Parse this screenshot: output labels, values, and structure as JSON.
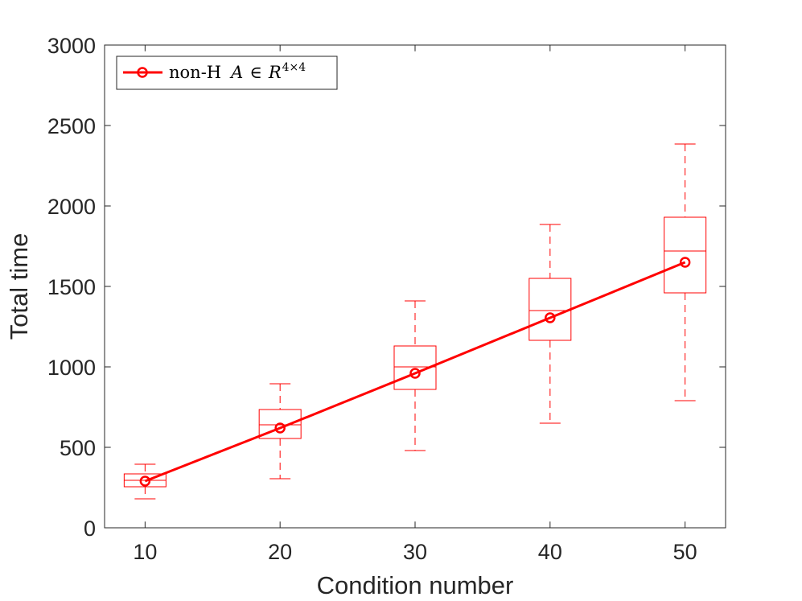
{
  "chart_data": {
    "type": "line",
    "xlabel": "Condition number",
    "ylabel": "Total time",
    "xlim": [
      7,
      53
    ],
    "ylim": [
      0,
      3000
    ],
    "xticks": [
      "10",
      "20",
      "30",
      "40",
      "50"
    ],
    "yticks": [
      "0",
      "500",
      "1000",
      "1500",
      "2000",
      "2500",
      "3000"
    ],
    "grid": false,
    "legend_position": "top-left",
    "legend": {
      "prefix": "non-H",
      "var": "A",
      "op": "∈",
      "set": "R",
      "exp": "4×4"
    },
    "color": "#ff0000",
    "x": [
      10,
      20,
      30,
      40,
      50
    ],
    "series": [
      {
        "name": "non-H A ∈ R^{4×4}",
        "values": [
          290,
          620,
          960,
          1305,
          1650
        ]
      }
    ],
    "boxplots": [
      {
        "x": 10,
        "whisker_low": 180,
        "q1": 255,
        "median": 295,
        "q3": 335,
        "whisker_high": 395
      },
      {
        "x": 20,
        "whisker_low": 305,
        "q1": 555,
        "median": 640,
        "q3": 735,
        "whisker_high": 895
      },
      {
        "x": 30,
        "whisker_low": 480,
        "q1": 860,
        "median": 1000,
        "q3": 1130,
        "whisker_high": 1410
      },
      {
        "x": 40,
        "whisker_low": 650,
        "q1": 1165,
        "median": 1350,
        "q3": 1550,
        "whisker_high": 1885
      },
      {
        "x": 50,
        "whisker_low": 790,
        "q1": 1460,
        "median": 1720,
        "q3": 1930,
        "whisker_high": 2385
      }
    ]
  }
}
